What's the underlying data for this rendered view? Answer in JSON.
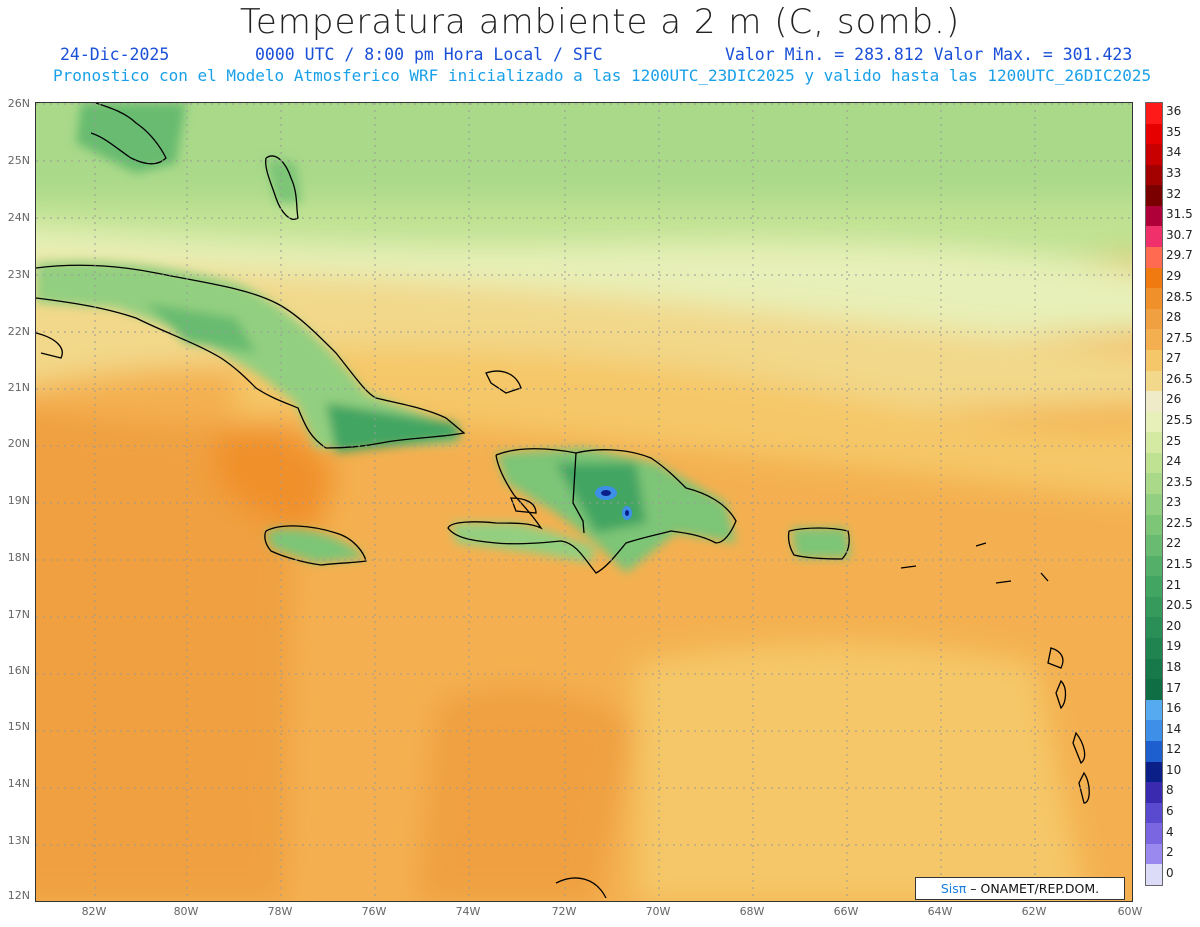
{
  "title": "Temperatura ambiente a 2 m (C, somb.)",
  "subtitle": {
    "date": "24-Dic-2025",
    "time": "0000 UTC / 8:00 pm Hora Local / SFC",
    "minmax": "Valor Min. = 283.812  Valor Max. = 301.423",
    "model": "Pronostico con el Modelo Atmosferico WRF inicializado a las 1200UTC_23DIC2025 y valido hasta las  1200UTC_26DIC2025"
  },
  "lat_labels": [
    "26N",
    "25N",
    "24N",
    "23N",
    "22N",
    "21N",
    "20N",
    "19N",
    "18N",
    "17N",
    "16N",
    "15N",
    "14N",
    "13N",
    "12N"
  ],
  "lon_labels": [
    "82W",
    "80W",
    "78W",
    "76W",
    "74W",
    "72W",
    "70W",
    "68W",
    "66W",
    "64W",
    "62W",
    "60W"
  ],
  "colorbar": {
    "labels": [
      "36",
      "35",
      "34",
      "33",
      "32",
      "31.5",
      "30.7",
      "29.7",
      "29",
      "28.5",
      "28",
      "27.5",
      "27",
      "26.5",
      "26",
      "25.5",
      "25",
      "24",
      "23.5",
      "23",
      "22.5",
      "22",
      "21.5",
      "21",
      "20.5",
      "20",
      "19",
      "18",
      "17",
      "16",
      "14",
      "12",
      "10",
      "8",
      "6",
      "4",
      "2",
      "0"
    ],
    "colors": [
      "#ff1a1a",
      "#e60000",
      "#c80000",
      "#a30000",
      "#7a0000",
      "#b0003a",
      "#f0306a",
      "#ff6a50",
      "#f07a10",
      "#f0902a",
      "#f0a040",
      "#f4b050",
      "#f5c768",
      "#f2d88a",
      "#efeac8",
      "#e7f0b8",
      "#d4eaa2",
      "#bfe292",
      "#a9d989",
      "#93cf80",
      "#7dc577",
      "#68bb70",
      "#54b068",
      "#43a562",
      "#359a5c",
      "#2a8f56",
      "#1f8450",
      "#17794a",
      "#0f6e44",
      "#55aaf0",
      "#3d8fe8",
      "#1e5fd0",
      "#0a1f88",
      "#3a2ab0",
      "#5a4ad0",
      "#7a66e0",
      "#9a8af0",
      "#dcdcf8"
    ]
  },
  "credit": {
    "logo": "Sisπ",
    "text": " – ONAMET/REP.DOM."
  }
}
